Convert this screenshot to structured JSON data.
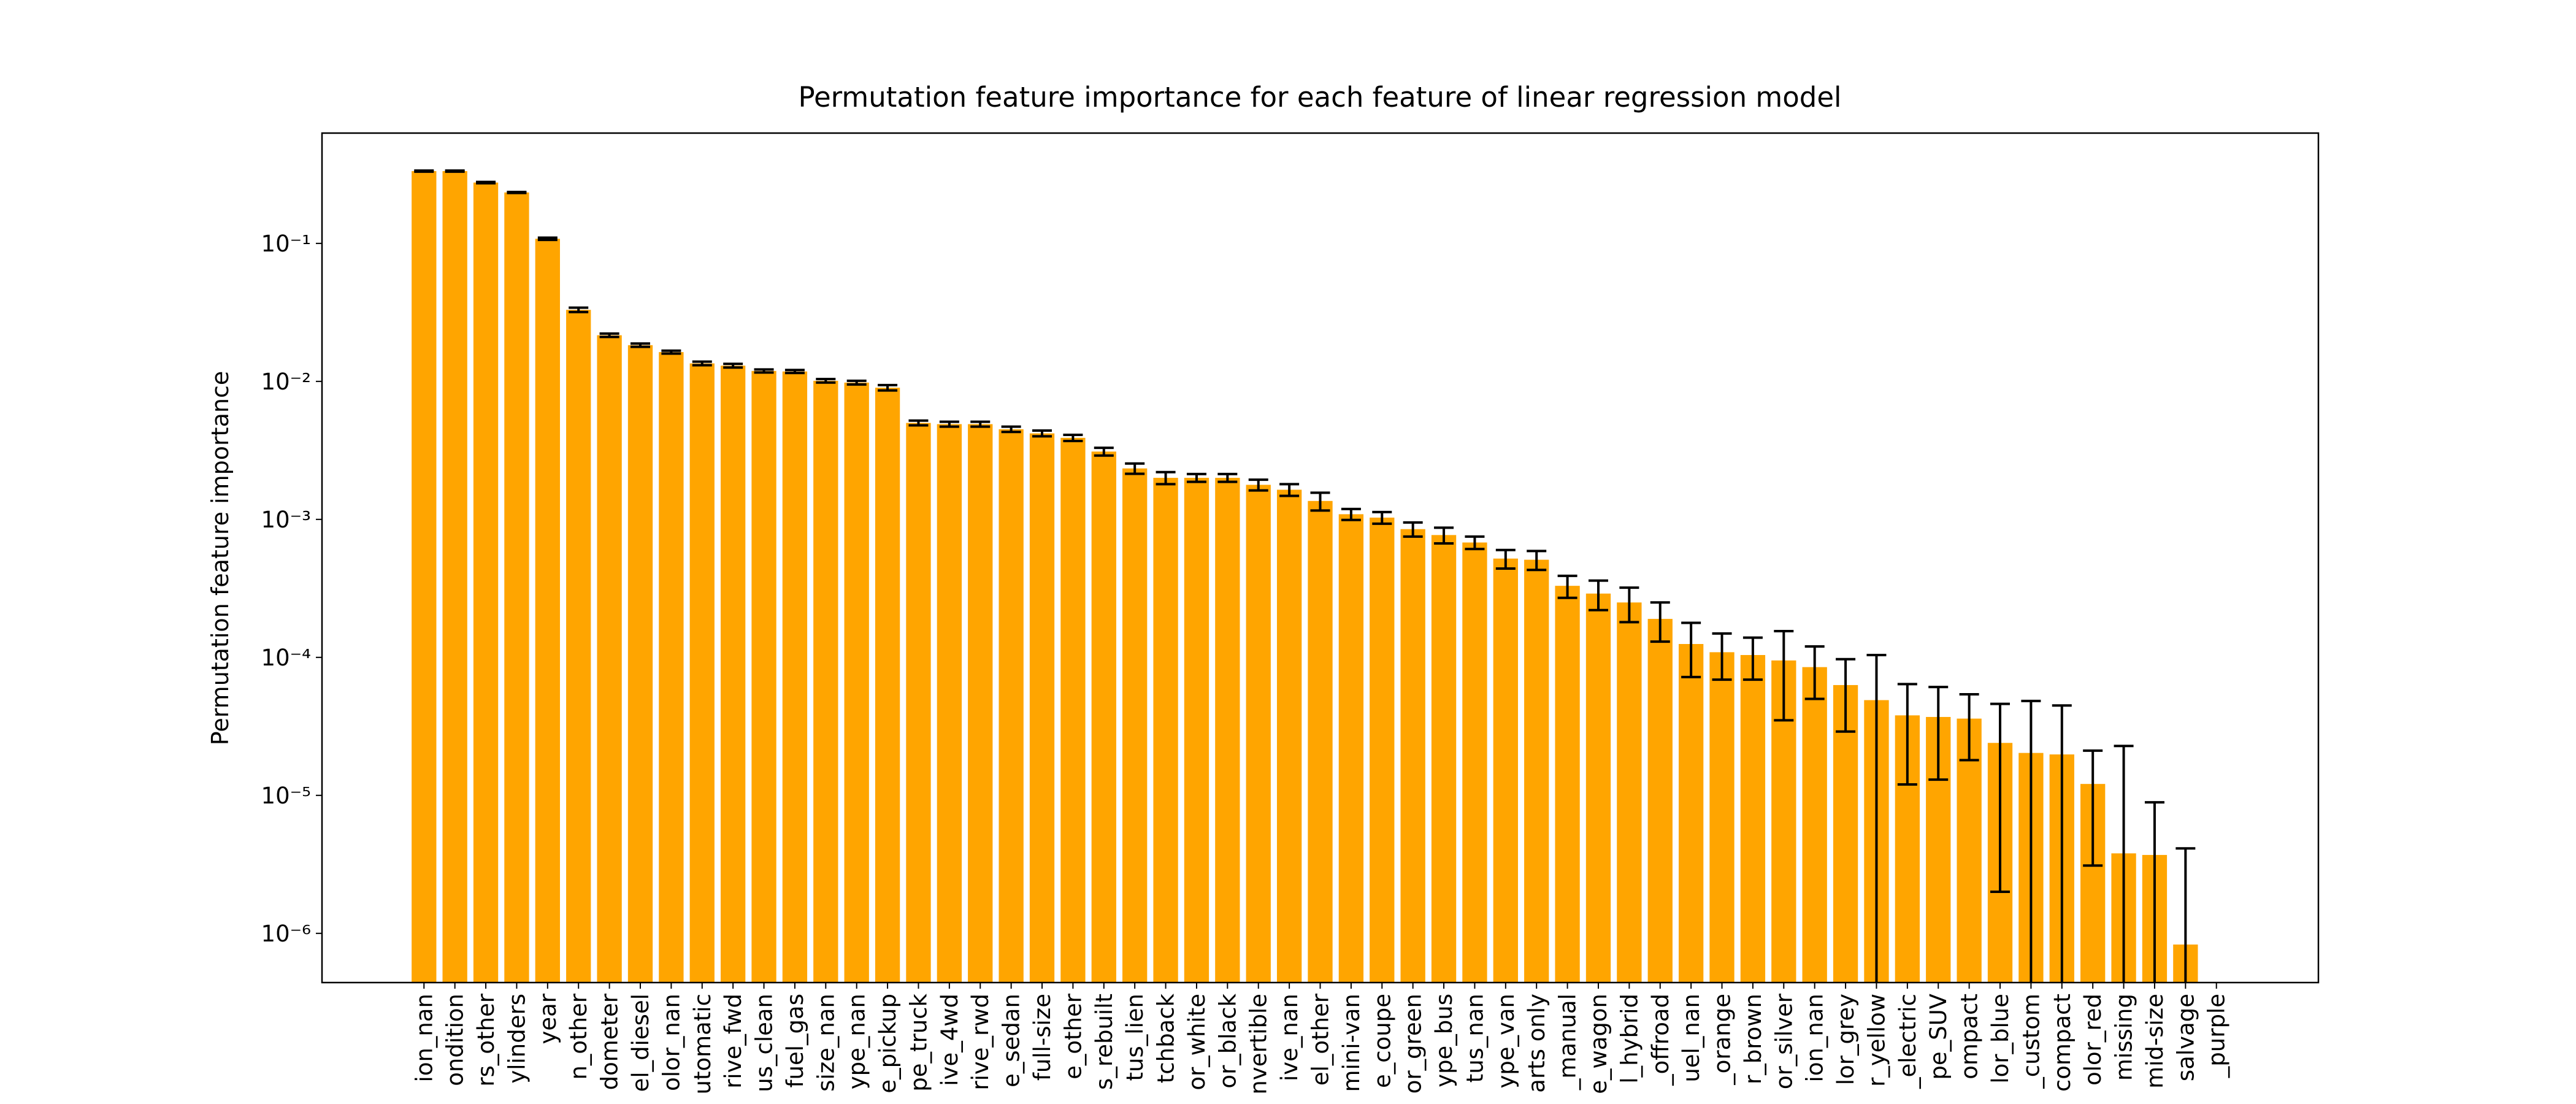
{
  "chart_data": {
    "type": "bar",
    "title": "Permutation feature importance for each feature of linear regression model",
    "y_label": "Permutation feature importance",
    "log_y": true,
    "color": "#ffa500",
    "error_color": "#000000",
    "categories": [
      "ion_nan",
      "ondition",
      "rs_other",
      "ylinders",
      "year",
      "n_other",
      "dometer",
      "el_diesel",
      "olor_nan",
      "utomatic",
      "rive_fwd",
      "us_clean",
      "fuel_gas",
      "size_nan",
      "ype_nan",
      "e_pickup",
      "pe_truck",
      "ive_4wd",
      "rive_rwd",
      "e_sedan",
      "full-size",
      "e_other",
      "s_rebuilt",
      "tus_lien",
      "tchback",
      "or_white",
      "or_black",
      "nvertible",
      "ive_nan",
      "el_other",
      "mini-van",
      "e_coupe",
      "or_green",
      "ype_bus",
      "tus_nan",
      "ype_van",
      "arts only",
      "_manual",
      "e_wagon",
      "l_hybrid",
      "_offroad",
      "uel_nan",
      "_orange",
      "r_brown",
      "or_silver",
      "ion_nan",
      "lor_grey",
      "r_yellow",
      "_electric",
      "pe_SUV",
      "ompact",
      "lor_blue",
      "_custom",
      "compact",
      "olor_red",
      "missing",
      "mid-size",
      "salvage",
      "_purple"
    ],
    "values": [
      0.334,
      0.334,
      0.276,
      0.234,
      0.108,
      0.033,
      0.0216,
      0.0183,
      0.0163,
      0.0135,
      0.013,
      0.0119,
      0.0118,
      0.0101,
      0.0098,
      0.009,
      0.005,
      0.0049,
      0.0049,
      0.0045,
      0.0042,
      0.0039,
      0.0031,
      0.00234,
      0.002,
      0.002,
      0.002,
      0.00178,
      0.00164,
      0.00136,
      0.00109,
      0.00103,
      0.00085,
      0.00077,
      0.00068,
      0.00052,
      0.00051,
      0.00033,
      0.00029,
      0.00025,
      0.00019,
      0.000125,
      0.000109,
      0.000104,
      9.5e-05,
      8.5e-05,
      6.3e-05,
      4.9e-05,
      3.8e-05,
      3.7e-05,
      3.6e-05,
      2.4e-05,
      2.03e-05,
      1.98e-05,
      1.21e-05,
      3.8e-06,
      3.7e-06,
      8.3e-07,
      null
    ],
    "errors": [
      0.003,
      0.003,
      0.003,
      0.002,
      0.002,
      0.0012,
      0.0006,
      0.0005,
      0.0004,
      0.0004,
      0.0004,
      0.0003,
      0.0003,
      0.0003,
      0.0003,
      0.0004,
      0.0002,
      0.0002,
      0.0002,
      0.0002,
      0.0002,
      0.0002,
      0.0002,
      0.0002,
      0.0002,
      0.00013,
      0.00013,
      0.00016,
      0.00016,
      0.0002,
      0.0001,
      0.0001,
      0.0001,
      0.0001,
      7e-05,
      8e-05,
      8e-05,
      6e-05,
      7e-05,
      7e-05,
      6e-05,
      5.3e-05,
      4e-05,
      3.5e-05,
      6e-05,
      3.5e-05,
      3.4e-05,
      5.5e-05,
      2.6e-05,
      2.4e-05,
      1.8e-05,
      2.2e-05,
      2.8e-05,
      2.5e-05,
      9e-06,
      1.9e-05,
      5.2e-06,
      3.3e-06,
      null
    ],
    "ylim": [
      4.4e-07,
      0.63
    ],
    "yticks": [
      {
        "value": 1e-06,
        "label": "10⁻⁶"
      },
      {
        "value": 1e-05,
        "label": "10⁻⁵"
      },
      {
        "value": 0.0001,
        "label": "10⁻⁴"
      },
      {
        "value": 0.001,
        "label": "10⁻³"
      },
      {
        "value": 0.01,
        "label": "10⁻²"
      },
      {
        "value": 0.1,
        "label": "10⁻¹"
      }
    ]
  }
}
